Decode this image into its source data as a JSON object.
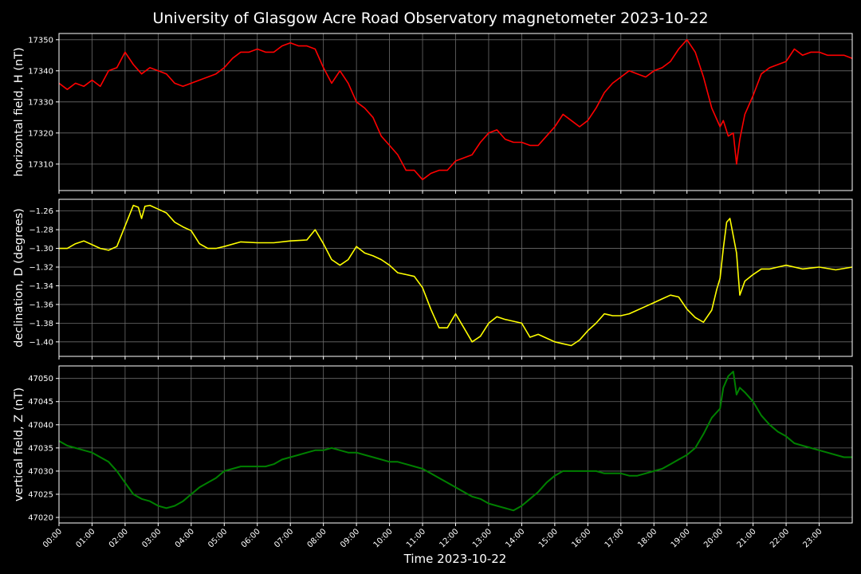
{
  "figure": {
    "title": "University of Glasgow Acre Road Observatory magnetometer 2023-10-22",
    "xlabel": "Time 2023-10-22",
    "background": "#000000",
    "grid": true
  },
  "chart_data": [
    {
      "type": "line",
      "name": "horizontal-field",
      "ylabel": "horizontal field, H (nT)",
      "color": "#ff0000",
      "xlim": [
        0,
        24
      ],
      "ylim": [
        17301.5,
        17352
      ],
      "yticks": [
        17310,
        17320,
        17330,
        17340,
        17350
      ],
      "ytick_labels": [
        "17310",
        "17320",
        "17330",
        "17340",
        "17350"
      ],
      "x_hours": [
        0,
        0.25,
        0.5,
        0.75,
        1,
        1.25,
        1.5,
        1.75,
        2,
        2.25,
        2.5,
        2.75,
        3,
        3.25,
        3.5,
        3.75,
        4,
        4.25,
        4.5,
        4.75,
        5,
        5.25,
        5.5,
        5.75,
        6,
        6.25,
        6.5,
        6.75,
        7,
        7.25,
        7.5,
        7.75,
        8,
        8.25,
        8.5,
        8.75,
        9,
        9.25,
        9.5,
        9.75,
        10,
        10.25,
        10.5,
        10.75,
        11,
        11.25,
        11.5,
        11.75,
        12,
        12.25,
        12.5,
        12.75,
        13,
        13.25,
        13.5,
        13.75,
        14,
        14.25,
        14.5,
        14.75,
        15,
        15.25,
        15.5,
        15.75,
        16,
        16.25,
        16.5,
        16.75,
        17,
        17.25,
        17.5,
        17.75,
        18,
        18.25,
        18.5,
        18.75,
        19,
        19.25,
        19.5,
        19.75,
        20,
        20.1,
        20.25,
        20.4,
        20.5,
        20.6,
        20.75,
        21,
        21.25,
        21.5,
        21.75,
        22,
        22.25,
        22.5,
        22.75,
        23,
        23.25,
        23.5,
        23.75,
        24
      ],
      "y": [
        17336,
        17334,
        17336,
        17335,
        17337,
        17335,
        17340,
        17341,
        17346,
        17342,
        17339,
        17341,
        17340,
        17339,
        17336,
        17335,
        17336,
        17337,
        17338,
        17339,
        17341,
        17344,
        17346,
        17346,
        17347,
        17346,
        17346,
        17348,
        17349,
        17348,
        17348,
        17347,
        17341,
        17336,
        17340,
        17336,
        17330,
        17328,
        17325,
        17319,
        17316,
        17313,
        17308,
        17308,
        17305,
        17307,
        17308,
        17308,
        17311,
        17312,
        17313,
        17317,
        17320,
        17321,
        17318,
        17317,
        17317,
        17316,
        17316,
        17319,
        17322,
        17326,
        17324,
        17322,
        17324,
        17328,
        17333,
        17336,
        17338,
        17340,
        17339,
        17338,
        17340,
        17341,
        17343,
        17347,
        17350,
        17346,
        17338,
        17328,
        17322,
        17324,
        17319,
        17320,
        17310,
        17318,
        17326,
        17332,
        17339,
        17341,
        17342,
        17343,
        17347,
        17345,
        17346,
        17346,
        17345,
        17345,
        17345,
        17344
      ]
    },
    {
      "type": "line",
      "name": "declination",
      "ylabel": "declination, D (degrees)",
      "color": "#ffff00",
      "xlim": [
        0,
        24
      ],
      "ylim": [
        -1.4155,
        -1.2475
      ],
      "yticks": [
        -1.26,
        -1.28,
        -1.3,
        -1.32,
        -1.34,
        -1.36,
        -1.38,
        -1.4
      ],
      "ytick_labels": [
        "−1.26",
        "−1.28",
        "−1.30",
        "−1.32",
        "−1.34",
        "−1.36",
        "−1.38",
        "−1.40"
      ],
      "x_hours": [
        0,
        0.25,
        0.5,
        0.75,
        1,
        1.25,
        1.5,
        1.75,
        2,
        2.25,
        2.4,
        2.5,
        2.6,
        2.75,
        3,
        3.25,
        3.5,
        3.75,
        4,
        4.25,
        4.5,
        4.75,
        5,
        5.5,
        6,
        6.5,
        7,
        7.5,
        7.75,
        8,
        8.25,
        8.5,
        8.75,
        9,
        9.25,
        9.5,
        9.75,
        10,
        10.25,
        10.5,
        10.75,
        11,
        11.25,
        11.5,
        11.75,
        12,
        12.25,
        12.5,
        12.75,
        13,
        13.25,
        13.5,
        13.75,
        14,
        14.25,
        14.5,
        14.75,
        15,
        15.25,
        15.5,
        15.75,
        16,
        16.25,
        16.5,
        16.75,
        17,
        17.25,
        17.5,
        17.75,
        18,
        18.25,
        18.5,
        18.75,
        19,
        19.25,
        19.5,
        19.75,
        19.9,
        20,
        20.1,
        20.2,
        20.3,
        20.5,
        20.6,
        20.75,
        21,
        21.25,
        21.5,
        21.75,
        22,
        22.5,
        23,
        23.5,
        24
      ],
      "y": [
        -1.3,
        -1.3,
        -1.295,
        -1.292,
        -1.296,
        -1.3,
        -1.302,
        -1.298,
        -1.276,
        -1.254,
        -1.256,
        -1.268,
        -1.255,
        -1.254,
        -1.258,
        -1.262,
        -1.272,
        -1.277,
        -1.281,
        -1.295,
        -1.3,
        -1.3,
        -1.298,
        -1.293,
        -1.294,
        -1.294,
        -1.292,
        -1.291,
        -1.28,
        -1.295,
        -1.312,
        -1.318,
        -1.312,
        -1.298,
        -1.305,
        -1.308,
        -1.312,
        -1.318,
        -1.326,
        -1.328,
        -1.33,
        -1.342,
        -1.365,
        -1.385,
        -1.385,
        -1.37,
        -1.385,
        -1.4,
        -1.394,
        -1.38,
        -1.373,
        -1.376,
        -1.378,
        -1.38,
        -1.395,
        -1.392,
        -1.396,
        -1.4,
        -1.402,
        -1.404,
        -1.398,
        -1.388,
        -1.38,
        -1.37,
        -1.372,
        -1.372,
        -1.37,
        -1.366,
        -1.362,
        -1.358,
        -1.354,
        -1.35,
        -1.352,
        -1.365,
        -1.374,
        -1.379,
        -1.366,
        -1.344,
        -1.332,
        -1.3,
        -1.272,
        -1.268,
        -1.305,
        -1.35,
        -1.335,
        -1.328,
        -1.322,
        -1.322,
        -1.32,
        -1.318,
        -1.322,
        -1.32,
        -1.323,
        -1.32
      ]
    },
    {
      "type": "line",
      "name": "vertical-field",
      "ylabel": "vertical field, Z (nT)",
      "color": "#008000",
      "xlim": [
        0,
        24
      ],
      "ylim": [
        47018.8,
        47052.7
      ],
      "yticks": [
        47020,
        47025,
        47030,
        47035,
        47040,
        47045,
        47050
      ],
      "ytick_labels": [
        "47020",
        "47025",
        "47030",
        "47035",
        "47040",
        "47045",
        "47050"
      ],
      "x_hours": [
        0,
        0.25,
        0.5,
        0.75,
        1,
        1.25,
        1.5,
        1.75,
        2,
        2.25,
        2.5,
        2.75,
        3,
        3.25,
        3.5,
        3.75,
        4,
        4.25,
        4.5,
        4.75,
        5,
        5.25,
        5.5,
        5.75,
        6,
        6.25,
        6.5,
        6.75,
        7,
        7.25,
        7.5,
        7.75,
        8,
        8.25,
        8.5,
        8.75,
        9,
        9.25,
        9.5,
        9.75,
        10,
        10.25,
        10.5,
        10.75,
        11,
        11.25,
        11.5,
        11.75,
        12,
        12.25,
        12.5,
        12.75,
        13,
        13.25,
        13.5,
        13.75,
        14,
        14.25,
        14.5,
        14.75,
        15,
        15.25,
        15.5,
        15.75,
        16,
        16.25,
        16.5,
        16.75,
        17,
        17.25,
        17.5,
        17.75,
        18,
        18.25,
        18.5,
        18.75,
        19,
        19.25,
        19.5,
        19.75,
        20,
        20.1,
        20.25,
        20.4,
        20.5,
        20.6,
        20.75,
        21,
        21.25,
        21.5,
        21.75,
        22,
        22.25,
        22.5,
        22.75,
        23,
        23.25,
        23.5,
        23.75,
        24
      ],
      "y": [
        47036.5,
        47035.5,
        47035,
        47034.5,
        47034,
        47033,
        47032,
        47030,
        47027.5,
        47025,
        47024,
        47023.5,
        47022.5,
        47022,
        47022.5,
        47023.5,
        47025,
        47026.5,
        47027.5,
        47028.5,
        47030,
        47030.5,
        47031,
        47031,
        47031,
        47031,
        47031.5,
        47032.5,
        47033,
        47033.5,
        47034,
        47034.5,
        47034.5,
        47035,
        47034.5,
        47034,
        47034,
        47033.5,
        47033,
        47032.5,
        47032,
        47032,
        47031.5,
        47031,
        47030.5,
        47029.5,
        47028.5,
        47027.5,
        47026.5,
        47025.5,
        47024.5,
        47024,
        47023,
        47022.5,
        47022,
        47021.5,
        47022.5,
        47024,
        47025.5,
        47027.5,
        47029,
        47030,
        47030,
        47030,
        47030,
        47030,
        47029.5,
        47029.5,
        47029.5,
        47029,
        47029,
        47029.5,
        47030,
        47030.5,
        47031.5,
        47032.5,
        47033.5,
        47035,
        47038,
        47041.5,
        47043.5,
        47048,
        47050.5,
        47051.5,
        47046.5,
        47048,
        47047,
        47045,
        47042,
        47040,
        47038.5,
        47037.5,
        47036,
        47035.5,
        47035,
        47034.5,
        47034,
        47033.5,
        47033,
        47033
      ]
    }
  ],
  "xaxis": {
    "ticks": [
      0,
      1,
      2,
      3,
      4,
      5,
      6,
      7,
      8,
      9,
      10,
      11,
      12,
      13,
      14,
      15,
      16,
      17,
      18,
      19,
      20,
      21,
      22,
      23
    ],
    "tick_labels": [
      "00:00",
      "01:00",
      "02:00",
      "03:00",
      "04:00",
      "05:00",
      "06:00",
      "07:00",
      "08:00",
      "09:00",
      "10:00",
      "11:00",
      "12:00",
      "13:00",
      "14:00",
      "15:00",
      "16:00",
      "17:00",
      "18:00",
      "19:00",
      "20:00",
      "21:00",
      "22:00",
      "23:00"
    ]
  }
}
